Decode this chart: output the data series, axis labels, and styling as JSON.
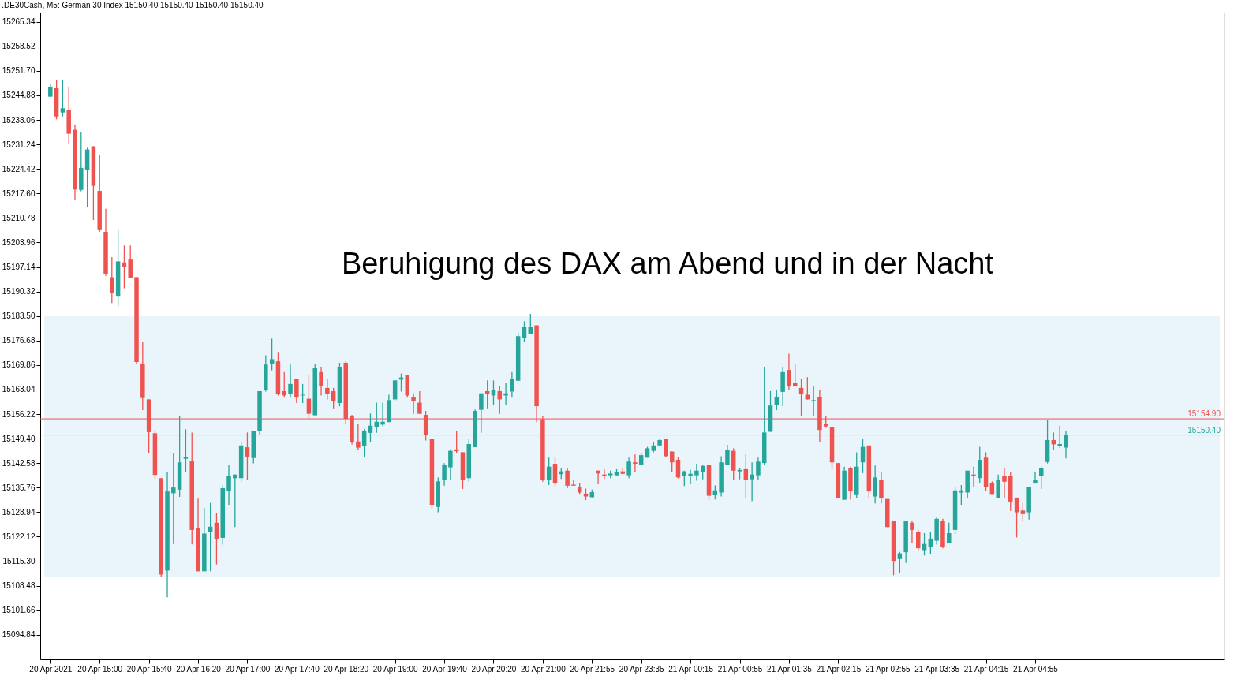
{
  "chart_data": {
    "type": "candlestick",
    "title": ".DE30Cash, M5:  German 30 Index  15150.40 15150.40 15150.40 15150.40",
    "annotations": [
      "Beruhigung des DAX am Abend und in der Nacht"
    ],
    "categories": [
      "20 Apr 2021",
      null,
      null,
      null,
      null,
      null,
      null,
      null,
      "20 Apr 15:00",
      null,
      null,
      null,
      null,
      null,
      null,
      null,
      "20 Apr 15:40",
      null,
      null,
      null,
      null,
      null,
      null,
      null,
      "20 Apr 16:20",
      null,
      null,
      null,
      null,
      null,
      null,
      null,
      "20 Apr 17:00",
      null,
      null,
      null,
      null,
      null,
      null,
      null,
      "20 Apr 17:40",
      null,
      null,
      null,
      null,
      null,
      null,
      null,
      "20 Apr 18:20",
      null,
      null,
      null,
      null,
      null,
      null,
      null,
      "20 Apr 19:00",
      null,
      null,
      null,
      null,
      null,
      null,
      null,
      "20 Apr 19:40",
      null,
      null,
      null,
      null,
      null,
      null,
      null,
      "20 Apr 20:20",
      null,
      null,
      null,
      null,
      null,
      null,
      null,
      "20 Apr 21:00",
      null,
      null,
      null,
      null,
      null,
      null,
      null,
      "20 Apr 21:55",
      null,
      null,
      null,
      null,
      null,
      null,
      null,
      "20 Apr 23:35",
      null,
      null,
      null,
      null,
      null,
      null,
      null,
      "21 Apr 00:15",
      null,
      null,
      null,
      null,
      null,
      null,
      null,
      "21 Apr 00:55",
      null,
      null,
      null,
      null,
      null,
      null,
      null,
      "21 Apr 01:35",
      null,
      null,
      null,
      null,
      null,
      null,
      null,
      "21 Apr 02:15",
      null,
      null,
      null,
      null,
      null,
      null,
      null,
      "21 Apr 02:55",
      null,
      null,
      null,
      null,
      null,
      null,
      null,
      "21 Apr 03:35",
      null,
      null,
      null,
      null,
      null,
      null,
      null,
      "21 Apr 04:15",
      null,
      null,
      null,
      null,
      null,
      null,
      null,
      "21 Apr 04:55",
      null,
      null,
      null,
      null,
      null
    ],
    "ohlc": [
      [
        15244.5,
        15248.2,
        15244.5,
        15247.3
      ],
      [
        15246.9,
        15249.2,
        15238.2,
        15239.0
      ],
      [
        15240.1,
        15249.2,
        15239.0,
        15241.3
      ],
      [
        15240.7,
        15247.3,
        15231.2,
        15234.2
      ],
      [
        15235.3,
        15236.8,
        15215.7,
        15218.7
      ],
      [
        15218.6,
        15234.7,
        15218.2,
        15224.7
      ],
      [
        15224.2,
        15230.3,
        15213.7,
        15229.8
      ],
      [
        15230.7,
        15230.7,
        15210.2,
        15219.7
      ],
      [
        15218.3,
        15228.4,
        15206.9,
        15207.6
      ],
      [
        15206.9,
        15213.3,
        15194.7,
        15195.3
      ],
      [
        15194.3,
        15199.9,
        15187.1,
        15189.8
      ],
      [
        15189.1,
        15207.6,
        15186.2,
        15198.7
      ],
      [
        15198.4,
        15203.1,
        15191.2,
        15197.2
      ],
      [
        15199.2,
        15203.1,
        15194.2,
        15194.2
      ],
      [
        15194.3,
        15194.3,
        15170.2,
        15170.7
      ],
      [
        15170.3,
        15176.2,
        15157.3,
        15160.7
      ],
      [
        15160.3,
        15160.3,
        15145.3,
        15151.2
      ],
      [
        15150.9,
        15151.7,
        15138.3,
        15139.3
      ],
      [
        15138.4,
        15138.4,
        15110.8,
        15111.6
      ],
      [
        15112.7,
        15140.2,
        15105.3,
        15134.7
      ],
      [
        15134.2,
        15145.4,
        15120.1,
        15135.8
      ],
      [
        15135.2,
        15155.8,
        15133.2,
        15142.8
      ],
      [
        15143.8,
        15152.0,
        15140.2,
        15144.2
      ],
      [
        15143.1,
        15151.1,
        15120.0,
        15124.0
      ],
      [
        15124.5,
        15132.7,
        15112.5,
        15112.5
      ],
      [
        15112.5,
        15130.1,
        15112.5,
        15123.0
      ],
      [
        15123.4,
        15131.5,
        15112.5,
        15124.9
      ],
      [
        15126.0,
        15128.6,
        15114.4,
        15121.4
      ],
      [
        15121.8,
        15136.4,
        15119.9,
        15135.6
      ],
      [
        15134.8,
        15142.0,
        15131.0,
        15139.0
      ],
      [
        15138.4,
        15139.4,
        15124.8,
        15139.4
      ],
      [
        15138.4,
        15148.6,
        15137.4,
        15147.5
      ],
      [
        15147.0,
        15151.1,
        15137.8,
        15144.4
      ],
      [
        15144.0,
        15151.6,
        15142.5,
        15151.6
      ],
      [
        15151.4,
        15162.6,
        15150.5,
        15162.6
      ],
      [
        15162.9,
        15172.6,
        15162.5,
        15170.0
      ],
      [
        15170.3,
        15177.2,
        15168.4,
        15171.5
      ],
      [
        15170.9,
        15173.5,
        15161.4,
        15161.8
      ],
      [
        15162.6,
        15167.9,
        15160.8,
        15161.4
      ],
      [
        15161.8,
        15170.0,
        15160.8,
        15164.6
      ],
      [
        15166.0,
        15166.0,
        15159.3,
        15160.8
      ],
      [
        15161.4,
        15164.6,
        15159.3,
        15161.6
      ],
      [
        15160.5,
        15167.1,
        15154.9,
        15156.3
      ],
      [
        15155.9,
        15170.1,
        15155.9,
        15169.0
      ],
      [
        15167.9,
        15169.4,
        15161.4,
        15164.0
      ],
      [
        15163.5,
        15166.0,
        15160.3,
        15161.8
      ],
      [
        15162.6,
        15163.5,
        15157.8,
        15159.9
      ],
      [
        15159.3,
        15170.5,
        15158.4,
        15169.4
      ],
      [
        15170.5,
        15170.9,
        15153.3,
        15154.9
      ],
      [
        15155.6,
        15156.0,
        15147.8,
        15148.4
      ],
      [
        15148.6,
        15153.5,
        15146.3,
        15146.9
      ],
      [
        15147.4,
        15152.0,
        15144.4,
        15151.6
      ],
      [
        15151.0,
        15156.4,
        15148.4,
        15153.0
      ],
      [
        15152.5,
        15159.4,
        15151.0,
        15154.1
      ],
      [
        15153.3,
        15159.4,
        15152.9,
        15154.1
      ],
      [
        15154.0,
        15161.6,
        15154.0,
        15160.1
      ],
      [
        15160.3,
        15165.6,
        15159.9,
        15165.6
      ],
      [
        15165.8,
        15167.5,
        15162.5,
        15166.4
      ],
      [
        15167.1,
        15167.1,
        15160.8,
        15161.4
      ],
      [
        15160.9,
        15162.0,
        15156.3,
        15159.9
      ],
      [
        15159.4,
        15162.6,
        15156.3,
        15156.3
      ],
      [
        15156.0,
        15157.1,
        15148.9,
        15150.3
      ],
      [
        15149.4,
        15149.4,
        15129.9,
        15131.0
      ],
      [
        15130.4,
        15138.6,
        15128.9,
        15137.5
      ],
      [
        15137.8,
        15142.6,
        15136.3,
        15142.0
      ],
      [
        15141.4,
        15146.4,
        15137.8,
        15146.0
      ],
      [
        15146.4,
        15151.6,
        15145.5,
        15145.9
      ],
      [
        15145.6,
        15145.6,
        15135.4,
        15137.8
      ],
      [
        15138.4,
        15149.4,
        15137.4,
        15147.9
      ],
      [
        15147.0,
        15157.5,
        15147.0,
        15157.1
      ],
      [
        15157.4,
        15162.0,
        15151.0,
        15162.0
      ],
      [
        15162.6,
        15165.6,
        15157.8,
        15161.8
      ],
      [
        15161.4,
        15165.6,
        15158.8,
        15163.0
      ],
      [
        15162.6,
        15164.1,
        15156.3,
        15160.3
      ],
      [
        15161.4,
        15165.0,
        15158.8,
        15162.0
      ],
      [
        15162.5,
        15167.9,
        15160.8,
        15166.0
      ],
      [
        15165.5,
        15178.9,
        15165.5,
        15177.9
      ],
      [
        15177.3,
        15182.0,
        15176.3,
        15180.5
      ],
      [
        15178.4,
        15184.1,
        15178.4,
        15180.5
      ],
      [
        15180.9,
        15180.9,
        15154.0,
        15158.4
      ],
      [
        15154.8,
        15155.8,
        15137.4,
        15137.8
      ],
      [
        15138.0,
        15144.1,
        15136.5,
        15141.6
      ],
      [
        15142.4,
        15144.3,
        15136.1,
        15136.9
      ],
      [
        15139.5,
        15141.1,
        15138.2,
        15140.3
      ],
      [
        15140.5,
        15141.1,
        15135.6,
        15136.3
      ],
      [
        15136.6,
        15137.9,
        15136.3,
        15136.3
      ],
      [
        15136.0,
        15136.9,
        15134.0,
        15134.4
      ],
      [
        15134.1,
        15135.5,
        15132.3,
        15133.3
      ],
      [
        15133.1,
        15135.2,
        15133.1,
        15134.5
      ],
      [
        15140.5,
        15140.5,
        15136.7,
        15139.7
      ],
      [
        15139.4,
        15140.9,
        15138.2,
        15138.9
      ],
      [
        15139.2,
        15140.5,
        15138.4,
        15139.7
      ],
      [
        15139.2,
        15140.9,
        15138.9,
        15140.1
      ],
      [
        15140.3,
        15141.3,
        15139.4,
        15139.6
      ],
      [
        15139.2,
        15144.1,
        15138.4,
        15143.0
      ],
      [
        15142.8,
        15145.0,
        15140.1,
        15142.4
      ],
      [
        15142.2,
        15145.4,
        15142.2,
        15144.8
      ],
      [
        15144.1,
        15147.1,
        15144.1,
        15146.7
      ],
      [
        15146.0,
        15148.4,
        15145.6,
        15147.5
      ],
      [
        15147.5,
        15149.2,
        15147.3,
        15149.0
      ],
      [
        15149.4,
        15149.4,
        15144.3,
        15144.5
      ],
      [
        15145.8,
        15145.8,
        15140.0,
        15142.8
      ],
      [
        15143.5,
        15144.3,
        15138.3,
        15138.6
      ],
      [
        15138.9,
        15140.5,
        15136.2,
        15140.3
      ],
      [
        15139.1,
        15140.7,
        15136.7,
        15139.6
      ],
      [
        15139.2,
        15142.4,
        15137.7,
        15140.5
      ],
      [
        15140.1,
        15142.0,
        15138.1,
        15141.8
      ],
      [
        15142.0,
        15142.0,
        15132.3,
        15133.5
      ],
      [
        15133.8,
        15136.4,
        15132.5,
        15135.0
      ],
      [
        15134.4,
        15144.5,
        15133.3,
        15142.8
      ],
      [
        15142.0,
        15147.7,
        15142.0,
        15146.2
      ],
      [
        15146.0,
        15146.7,
        15137.9,
        15140.5
      ],
      [
        15140.3,
        15141.3,
        15138.1,
        15140.7
      ],
      [
        15140.9,
        15145.0,
        15132.8,
        15137.9
      ],
      [
        15138.1,
        15142.8,
        15132.0,
        15139.4
      ],
      [
        15139.2,
        15144.1,
        15137.9,
        15143.0
      ],
      [
        15142.6,
        15169.4,
        15142.0,
        15151.1
      ],
      [
        15151.3,
        15162.6,
        15151.3,
        15158.6
      ],
      [
        15158.8,
        15163.0,
        15157.3,
        15160.9
      ],
      [
        15162.4,
        15169.4,
        15158.4,
        15167.9
      ],
      [
        15168.5,
        15173.0,
        15162.8,
        15163.9
      ],
      [
        15165.0,
        15170.0,
        15163.9,
        15163.9
      ],
      [
        15163.5,
        15166.0,
        15155.8,
        15161.8
      ],
      [
        15161.6,
        15166.5,
        15160.3,
        15160.3
      ],
      [
        15159.9,
        15164.1,
        15155.8,
        15160.1
      ],
      [
        15160.9,
        15163.0,
        15148.4,
        15151.8
      ],
      [
        15153.5,
        15155.6,
        15152.4,
        15152.8
      ],
      [
        15152.6,
        15152.6,
        15140.9,
        15142.8
      ],
      [
        15142.6,
        15142.6,
        15132.8,
        15132.8
      ],
      [
        15132.4,
        15141.6,
        15132.4,
        15140.5
      ],
      [
        15141.1,
        15141.6,
        15132.4,
        15134.7
      ],
      [
        15133.9,
        15145.6,
        15132.8,
        15141.6
      ],
      [
        15142.8,
        15149.4,
        15139.8,
        15147.1
      ],
      [
        15147.5,
        15147.5,
        15132.8,
        15134.7
      ],
      [
        15133.3,
        15141.9,
        15131.4,
        15138.6
      ],
      [
        15137.9,
        15140.1,
        15131.4,
        15132.8
      ],
      [
        15132.6,
        15132.6,
        15124.8,
        15124.8
      ],
      [
        15126.5,
        15126.5,
        15111.4,
        15115.4
      ],
      [
        15115.9,
        15117.9,
        15111.9,
        15117.5
      ],
      [
        15117.8,
        15126.4,
        15114.8,
        15126.4
      ],
      [
        15126.0,
        15126.4,
        15120.4,
        15124.0
      ],
      [
        15123.5,
        15124.1,
        15118.4,
        15118.9
      ],
      [
        15118.4,
        15123.1,
        15116.9,
        15120.1
      ],
      [
        15119.3,
        15123.5,
        15117.4,
        15121.6
      ],
      [
        15121.0,
        15127.5,
        15119.9,
        15127.1
      ],
      [
        15126.5,
        15127.1,
        15118.9,
        15119.3
      ],
      [
        15120.4,
        15126.0,
        15120.4,
        15123.1
      ],
      [
        15124.0,
        15136.0,
        15122.9,
        15135.0
      ],
      [
        15134.4,
        15136.5,
        15131.0,
        15135.0
      ],
      [
        15134.4,
        15140.5,
        15132.9,
        15140.5
      ],
      [
        15139.4,
        15141.6,
        15135.9,
        15138.9
      ],
      [
        15138.4,
        15147.1,
        15136.9,
        15143.5
      ],
      [
        15144.1,
        15145.6,
        15134.8,
        15135.9
      ],
      [
        15137.1,
        15137.5,
        15134.0,
        15134.0
      ],
      [
        15132.9,
        15139.4,
        15132.9,
        15137.9
      ],
      [
        15139.0,
        15141.1,
        15132.9,
        15137.4
      ],
      [
        15139.0,
        15140.1,
        15129.3,
        15131.9
      ],
      [
        15133.0,
        15133.0,
        15121.9,
        15128.9
      ],
      [
        15129.4,
        15131.6,
        15126.3,
        15128.4
      ],
      [
        15128.9,
        15136.0,
        15126.9,
        15136.0
      ],
      [
        15136.9,
        15140.1,
        15136.9,
        15137.9
      ],
      [
        15138.9,
        15141.6,
        15135.4,
        15141.1
      ],
      [
        15142.9,
        15154.6,
        15142.5,
        15149.0
      ],
      [
        15149.0,
        15151.1,
        15146.3,
        15147.8
      ],
      [
        15147.4,
        15153.0,
        15146.9,
        15147.9
      ],
      [
        15146.9,
        15151.5,
        15143.9,
        15150.4
      ]
    ],
    "colors": [
      "#26a69a",
      "#ef5350",
      "#26a69a",
      "#ef5350",
      "#ef5350",
      "#26a69a",
      "#26a69a",
      "#ef5350",
      "#ef5350",
      "#ef5350",
      "#ef5350",
      "#26a69a",
      "#ef5350",
      "#ef5350",
      "#ef5350",
      "#ef5350",
      "#ef5350",
      "#ef5350",
      "#ef5350",
      "#26a69a",
      "#26a69a",
      "#26a69a",
      "#26a69a",
      "#ef5350",
      "#ef5350",
      "#26a69a",
      "#26a69a",
      "#ef5350",
      "#26a69a",
      "#26a69a",
      "#26a69a",
      "#26a69a",
      "#ef5350",
      "#26a69a",
      "#26a69a",
      "#26a69a",
      "#26a69a",
      "#ef5350",
      "#ef5350",
      "#26a69a",
      "#ef5350",
      "#26a69a",
      "#ef5350",
      "#26a69a",
      "#ef5350",
      "#ef5350",
      "#ef5350",
      "#26a69a",
      "#ef5350",
      "#ef5350",
      "#ef5350",
      "#26a69a",
      "#26a69a",
      "#26a69a",
      "#26a69a",
      "#26a69a",
      "#26a69a",
      "#26a69a",
      "#ef5350",
      "#ef5350",
      "#ef5350",
      "#ef5350",
      "#ef5350",
      "#26a69a",
      "#26a69a",
      "#26a69a",
      "#ef5350",
      "#ef5350",
      "#26a69a",
      "#26a69a",
      "#26a69a",
      "#ef5350",
      "#26a69a",
      "#ef5350",
      "#26a69a",
      "#26a69a",
      "#26a69a",
      "#26a69a",
      "#26a69a",
      "#ef5350",
      "#ef5350",
      "#26a69a",
      "#ef5350",
      "#26a69a",
      "#ef5350",
      "#ef5350",
      "#ef5350",
      "#ef5350",
      "#26a69a",
      "#ef5350",
      "#ef5350",
      "#26a69a",
      "#26a69a",
      "#ef5350",
      "#26a69a",
      "#ef5350",
      "#26a69a",
      "#26a69a",
      "#26a69a",
      "#26a69a",
      "#ef5350",
      "#ef5350",
      "#ef5350",
      "#26a69a",
      "#26a69a",
      "#26a69a",
      "#26a69a",
      "#ef5350",
      "#26a69a",
      "#26a69a",
      "#26a69a",
      "#ef5350",
      "#26a69a",
      "#ef5350",
      "#26a69a",
      "#26a69a",
      "#26a69a",
      "#26a69a",
      "#26a69a",
      "#26a69a",
      "#ef5350",
      "#ef5350",
      "#ef5350",
      "#ef5350",
      "#26a69a",
      "#ef5350",
      "#ef5350",
      "#ef5350",
      "#ef5350",
      "#26a69a",
      "#ef5350",
      "#26a69a",
      "#26a69a",
      "#ef5350",
      "#26a69a",
      "#ef5350",
      "#ef5350",
      "#ef5350",
      "#26a69a",
      "#26a69a",
      "#ef5350",
      "#ef5350",
      "#26a69a",
      "#26a69a",
      "#26a69a",
      "#ef5350",
      "#26a69a",
      "#26a69a",
      "#26a69a",
      "#26a69a",
      "#ef5350",
      "#26a69a",
      "#ef5350",
      "#ef5350",
      "#26a69a",
      "#ef5350",
      "#ef5350",
      "#ef5350",
      "#ef5350",
      "#26a69a",
      "#26a69a",
      "#26a69a",
      "#26a69a",
      "#ef5350",
      "#26a69a",
      "#26a69a"
    ],
    "ylim": [
      15088.0,
      15267.9
    ],
    "yticks": [
      15265.34,
      15258.52,
      {
        "value": 15251.7,
        "label": "15251.70"
      },
      15244.88,
      15238.06,
      15231.24,
      15224.42,
      {
        "value": 15217.6,
        "label": "15217.60"
      },
      15210.78,
      15203.96,
      15197.14,
      15190.32,
      {
        "value": 15183.5,
        "label": "15183.50"
      },
      15176.68,
      15169.86,
      15163.04,
      15156.22,
      {
        "value": 15149.4,
        "label": "15149.40"
      },
      15142.58,
      15135.76,
      15128.94,
      15122.12,
      {
        "value": 15115.3,
        "label": "15115.30"
      },
      15108.48,
      15101.66,
      15094.84
    ],
    "ref_lines": [
      {
        "axis": "y",
        "value": 15154.9,
        "label": "15154.90",
        "color": "#ef5350"
      },
      {
        "axis": "y",
        "value": 15150.4,
        "label": "15150.40",
        "color": "#26a69a"
      }
    ],
    "bands": [
      {
        "axis": "y",
        "from": 15110.9,
        "to": 15183.5,
        "color": "#eaf5fb"
      }
    ],
    "grid": false,
    "legend": false
  }
}
